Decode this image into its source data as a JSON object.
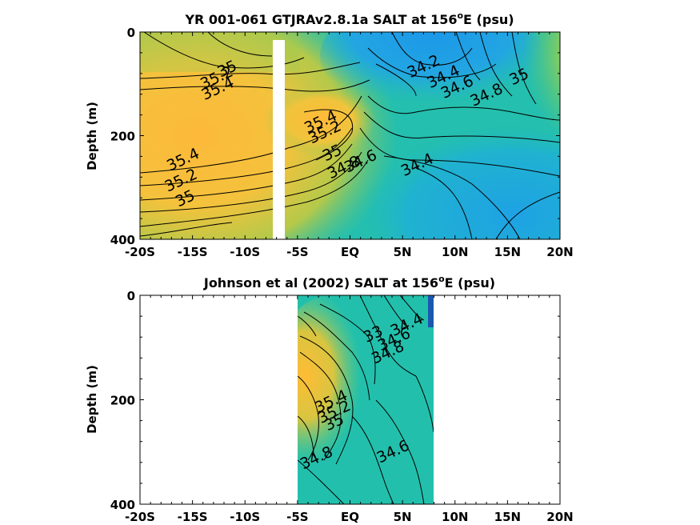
{
  "chart_data": [
    {
      "type": "contour",
      "title_main": "YR 001-061 GTJRAv2.8.1a SALT at 156",
      "title_sup": "o",
      "title_end": "E (psu)",
      "ylabel": "Depth (m)",
      "xlim": [
        -20,
        20
      ],
      "ylim": [
        0,
        400
      ],
      "x_ticks": [
        -20,
        -15,
        -10,
        -5,
        0,
        5,
        10,
        15,
        20
      ],
      "x_tick_labels": [
        "-20S",
        "-15S",
        "-10S",
        "-5S",
        "EQ",
        "5N",
        "10N",
        "15N",
        "20N"
      ],
      "y_ticks": [
        0,
        200,
        400
      ],
      "y_tick_labels": [
        "0",
        "200",
        "400"
      ],
      "color_scale": {
        "low": "#1ea0e6",
        "mid": "#20c0a4",
        "high": "#fbbd3e"
      },
      "contour_labels": [
        {
          "text": "35",
          "x": -11.5,
          "y": 80
        },
        {
          "text": "35.2",
          "x": -12.5,
          "y": 97
        },
        {
          "text": "35.4",
          "x": -12.4,
          "y": 118
        },
        {
          "text": "35.4",
          "x": -2.6,
          "y": 182
        },
        {
          "text": "35.2",
          "x": -2.2,
          "y": 202
        },
        {
          "text": "35",
          "x": -1.5,
          "y": 242
        },
        {
          "text": "34.8",
          "x": -0.4,
          "y": 270
        },
        {
          "text": "34.6",
          "x": 1.2,
          "y": 258
        },
        {
          "text": "34.4",
          "x": 6.6,
          "y": 265
        },
        {
          "text": "35.4",
          "x": -15.7,
          "y": 255
        },
        {
          "text": "35.2",
          "x": -15.9,
          "y": 295
        },
        {
          "text": "35",
          "x": -15.5,
          "y": 330
        },
        {
          "text": "34.2",
          "x": 7.2,
          "y": 75
        },
        {
          "text": "34.4",
          "x": 9.1,
          "y": 95
        },
        {
          "text": "34.6",
          "x": 10.4,
          "y": 115
        },
        {
          "text": "34.8",
          "x": 13.2,
          "y": 130
        },
        {
          "text": "35",
          "x": 16.3,
          "y": 95
        }
      ]
    },
    {
      "type": "contour",
      "title_main": "Johnson et al (2002) SALT at 156",
      "title_sup": "o",
      "title_end": "E (psu)",
      "ylabel": "Depth (m)",
      "xlim": [
        -20,
        20
      ],
      "ylim": [
        0,
        400
      ],
      "data_x_range": [
        -5,
        8
      ],
      "x_ticks": [
        -20,
        -15,
        -10,
        -5,
        0,
        5,
        10,
        15,
        20
      ],
      "x_tick_labels": [
        "-20S",
        "-15S",
        "-10S",
        "-5S",
        "EQ",
        "5N",
        "10N",
        "15N",
        "20N"
      ],
      "y_ticks": [
        0,
        200,
        400
      ],
      "y_tick_labels": [
        "0",
        "200",
        "400"
      ],
      "color_scale": {
        "low": "#1ea0e6",
        "mid": "#20c0a4",
        "high": "#fbbd3e"
      },
      "contour_labels": [
        {
          "text": "34.4",
          "x": 5.6,
          "y": 65
        },
        {
          "text": "34.6",
          "x": 4.4,
          "y": 93
        },
        {
          "text": "33",
          "x": 2.4,
          "y": 83
        },
        {
          "text": "34.8",
          "x": 3.8,
          "y": 118
        },
        {
          "text": "35.4",
          "x": -1.6,
          "y": 212
        },
        {
          "text": "35.2",
          "x": -1.3,
          "y": 232
        },
        {
          "text": "35",
          "x": -1.3,
          "y": 252
        },
        {
          "text": "34.8",
          "x": -3.0,
          "y": 320
        },
        {
          "text": "34.6",
          "x": 4.3,
          "y": 308
        }
      ]
    }
  ]
}
